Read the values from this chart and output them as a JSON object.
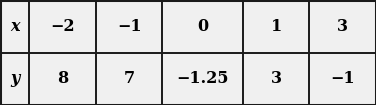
{
  "bg_color": "#e8e8e8",
  "cell_bg": "#f0f0f0",
  "border_color": "#1a1a1a",
  "figsize": [
    3.76,
    1.05
  ],
  "dpi": 100,
  "header_row": [
    "x",
    "−2",
    "−1",
    "0",
    "1",
    "3"
  ],
  "data_row": [
    "y",
    "8",
    "7",
    "−1.25",
    "3",
    "−1"
  ],
  "col_widths": [
    0.42,
    0.95,
    0.95,
    1.15,
    0.95,
    0.95
  ],
  "font_size": 11.5,
  "outer_lw": 2.2,
  "inner_lw": 1.4
}
